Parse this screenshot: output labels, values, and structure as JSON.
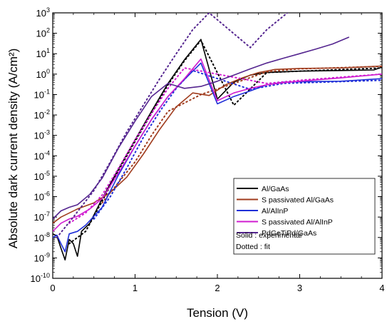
{
  "chart_data": {
    "type": "line",
    "xlabel": "Tension (V)",
    "ylabel": "Absolute dark current density (A/cm²)",
    "xlim": [
      0,
      4
    ],
    "ylim_log10": [
      -10,
      3
    ],
    "yscale": "log",
    "x_ticks": [
      "0",
      "1",
      "2",
      "3",
      "4"
    ],
    "y_tick_exponents": [
      "-10",
      "-9",
      "-8",
      "-7",
      "-6",
      "-5",
      "-4",
      "-3",
      "-2",
      "-1",
      "0",
      "1",
      "2",
      "3"
    ],
    "y_tick_base": "10",
    "legend_position": "bottom-right",
    "legend_notes": [
      "Solid : experimental",
      "Dotted : fit"
    ],
    "series": [
      {
        "name": "Al/GaAs",
        "color": "#000000",
        "experimental": [
          [
            0.0,
            1.5e-08
          ],
          [
            0.05,
            1.2e-08
          ],
          [
            0.1,
            3e-09
          ],
          [
            0.15,
            8e-10
          ],
          [
            0.2,
            8e-09
          ],
          [
            0.25,
            5e-09
          ],
          [
            0.3,
            1.2e-09
          ],
          [
            0.35,
            2e-08
          ],
          [
            0.45,
            5e-08
          ],
          [
            0.6,
            8e-07
          ],
          [
            0.8,
            2.3e-05
          ],
          [
            1.0,
            0.0006
          ],
          [
            1.2,
            0.015
          ],
          [
            1.4,
            0.35
          ],
          [
            1.6,
            5
          ],
          [
            1.8,
            50
          ],
          [
            2.0,
            0.06
          ],
          [
            2.2,
            0.4
          ],
          [
            2.4,
            0.9
          ],
          [
            2.6,
            1.2
          ],
          [
            3.0,
            1.4
          ],
          [
            3.5,
            1.5
          ],
          [
            3.9,
            1.6
          ],
          [
            4.0,
            2.2
          ]
        ],
        "fit": [
          [
            0.2,
            5e-09
          ],
          [
            0.4,
            2e-08
          ],
          [
            0.6,
            6e-07
          ],
          [
            0.8,
            2e-05
          ],
          [
            1.0,
            0.0005
          ],
          [
            1.2,
            0.012
          ],
          [
            1.4,
            0.3
          ],
          [
            1.6,
            4.5
          ],
          [
            1.8,
            45
          ],
          [
            2.2,
            0.03
          ],
          [
            2.6,
            1.2
          ],
          [
            3.0,
            1.4
          ],
          [
            4.0,
            2.0
          ]
        ]
      },
      {
        "name": "S passivated Al/GaAs",
        "color": "#a03c1e",
        "experimental": [
          [
            0.0,
            5e-08
          ],
          [
            0.1,
            1e-07
          ],
          [
            0.3,
            2.5e-07
          ],
          [
            0.5,
            5e-07
          ],
          [
            0.7,
            1.6e-06
          ],
          [
            0.9,
            9e-06
          ],
          [
            1.1,
            0.00012
          ],
          [
            1.3,
            0.002
          ],
          [
            1.5,
            0.025
          ],
          [
            1.7,
            0.12
          ],
          [
            1.9,
            0.09
          ],
          [
            2.1,
            0.3
          ],
          [
            2.3,
            0.65
          ],
          [
            2.5,
            1.2
          ],
          [
            2.7,
            1.7
          ],
          [
            3.0,
            1.9
          ],
          [
            3.5,
            2.0
          ],
          [
            4.0,
            2.5
          ]
        ],
        "fit": [
          [
            0.6,
            5e-07
          ],
          [
            0.8,
            5e-06
          ],
          [
            1.0,
            5e-05
          ],
          [
            1.2,
            0.001
          ],
          [
            1.4,
            0.015
          ],
          [
            1.8,
            0.1
          ],
          [
            2.2,
            0.35
          ],
          [
            2.6,
            1.3
          ],
          [
            3.0,
            1.8
          ],
          [
            4.0,
            2.4
          ]
        ]
      },
      {
        "name": "Al/AlInP",
        "color": "#1f2fd8",
        "experimental": [
          [
            0.0,
            1e-08
          ],
          [
            0.05,
            1.3e-08
          ],
          [
            0.1,
            5e-09
          ],
          [
            0.15,
            2e-09
          ],
          [
            0.2,
            1.5e-08
          ],
          [
            0.3,
            2e-08
          ],
          [
            0.4,
            4e-08
          ],
          [
            0.6,
            3e-07
          ],
          [
            0.8,
            1.2e-05
          ],
          [
            1.0,
            0.0003
          ],
          [
            1.2,
            0.006
          ],
          [
            1.4,
            0.08
          ],
          [
            1.6,
            0.55
          ],
          [
            1.8,
            3.5
          ],
          [
            2.0,
            0.035
          ],
          [
            2.2,
            0.08
          ],
          [
            2.4,
            0.15
          ],
          [
            2.6,
            0.3
          ],
          [
            2.8,
            0.4
          ],
          [
            3.0,
            0.42
          ],
          [
            3.5,
            0.45
          ],
          [
            4.0,
            0.6
          ]
        ],
        "fit": [
          [
            0.5,
            8e-08
          ],
          [
            0.7,
            1e-06
          ],
          [
            0.9,
            2.5e-05
          ],
          [
            1.1,
            0.0008
          ],
          [
            1.3,
            0.015
          ],
          [
            1.5,
            0.2
          ],
          [
            1.7,
            1.5
          ],
          [
            2.4,
            0.18
          ],
          [
            2.8,
            0.35
          ],
          [
            4.0,
            0.5
          ]
        ]
      },
      {
        "name": "S passivated Al/AlInP",
        "color": "#d01cd0",
        "experimental": [
          [
            0.0,
            2e-08
          ],
          [
            0.1,
            5e-08
          ],
          [
            0.2,
            8e-08
          ],
          [
            0.3,
            1.1e-07
          ],
          [
            0.45,
            2.5e-07
          ],
          [
            0.6,
            8e-07
          ],
          [
            0.8,
            1.5e-05
          ],
          [
            1.0,
            0.0003
          ],
          [
            1.2,
            0.006
          ],
          [
            1.4,
            0.08
          ],
          [
            1.6,
            0.6
          ],
          [
            1.8,
            5.5
          ],
          [
            2.0,
            0.05
          ],
          [
            2.2,
            0.12
          ],
          [
            2.4,
            0.2
          ],
          [
            2.6,
            0.3
          ],
          [
            2.8,
            0.38
          ],
          [
            3.0,
            0.45
          ],
          [
            3.5,
            0.65
          ],
          [
            4.0,
            1.0
          ]
        ],
        "fit": [
          [
            0.2,
            5e-08
          ],
          [
            0.4,
            1.6e-07
          ],
          [
            0.6,
            1.2e-06
          ],
          [
            0.8,
            2.5e-05
          ],
          [
            1.0,
            0.0006
          ],
          [
            1.2,
            0.012
          ],
          [
            1.4,
            0.2
          ],
          [
            1.6,
            2
          ],
          [
            2.6,
            0.35
          ],
          [
            3.0,
            0.5
          ],
          [
            4.0,
            1.0
          ]
        ]
      },
      {
        "name": "PdGeTiPd/GaAs",
        "color": "#54258f",
        "experimental": [
          [
            0.0,
            8e-08
          ],
          [
            0.1,
            2e-07
          ],
          [
            0.2,
            3e-07
          ],
          [
            0.3,
            4e-07
          ],
          [
            0.45,
            1.3e-06
          ],
          [
            0.6,
            8e-06
          ],
          [
            0.8,
            0.00025
          ],
          [
            1.0,
            0.005
          ],
          [
            1.2,
            0.08
          ],
          [
            1.4,
            0.35
          ],
          [
            1.6,
            0.2
          ],
          [
            1.8,
            0.25
          ],
          [
            2.0,
            0.45
          ],
          [
            2.2,
            0.9
          ],
          [
            2.4,
            1.8
          ],
          [
            2.6,
            3.5
          ],
          [
            2.8,
            6
          ],
          [
            3.0,
            10
          ],
          [
            3.2,
            17
          ],
          [
            3.4,
            30
          ],
          [
            3.6,
            65
          ]
        ],
        "fit": [
          [
            0.05,
            1e-08
          ],
          [
            0.25,
            1e-07
          ],
          [
            0.5,
            2e-06
          ],
          [
            0.7,
            5e-05
          ],
          [
            0.9,
            0.0015
          ],
          [
            1.1,
            0.03
          ],
          [
            1.3,
            0.6
          ],
          [
            1.5,
            10
          ],
          [
            1.7,
            150
          ],
          [
            1.9,
            1000
          ],
          [
            2.4,
            20
          ],
          [
            2.6,
            150
          ],
          [
            2.85,
            1000
          ]
        ]
      }
    ]
  }
}
